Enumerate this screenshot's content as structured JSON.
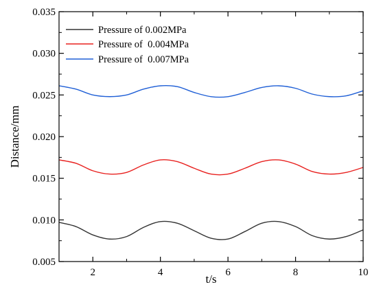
{
  "chart_data": {
    "type": "line",
    "xlabel": "t/s",
    "ylabel": "Distance/mm",
    "xlim": [
      1,
      10
    ],
    "ylim": [
      0.005,
      0.035
    ],
    "xticks": [
      2,
      4,
      6,
      8,
      10
    ],
    "xtick_labels": [
      "2",
      "4",
      "6",
      "8",
      "10"
    ],
    "yticks": [
      0.005,
      0.01,
      0.015,
      0.02,
      0.025,
      0.03,
      0.035
    ],
    "ytick_labels": [
      "0.005",
      "0.010",
      "0.015",
      "0.020",
      "0.025",
      "0.030",
      "0.035"
    ],
    "legend_position": "top-left",
    "grid": false,
    "series": [
      {
        "name": "Pressure of 0.002MPa",
        "color": "#333333",
        "x": [
          1.0,
          1.5,
          2.0,
          2.5,
          3.0,
          3.5,
          4.0,
          4.5,
          5.0,
          5.5,
          6.0,
          6.5,
          7.0,
          7.5,
          8.0,
          8.5,
          9.0,
          9.5,
          10.0
        ],
        "y": [
          0.0097,
          0.0092,
          0.0082,
          0.0077,
          0.008,
          0.0091,
          0.0098,
          0.0096,
          0.0087,
          0.0078,
          0.0077,
          0.0086,
          0.0096,
          0.0098,
          0.0092,
          0.0081,
          0.0077,
          0.008,
          0.0088
        ]
      },
      {
        "name": "Pressure of  0.004MPa",
        "color": "#e8211f",
        "x": [
          1.0,
          1.5,
          2.0,
          2.5,
          3.0,
          3.5,
          4.0,
          4.5,
          5.0,
          5.5,
          6.0,
          6.5,
          7.0,
          7.5,
          8.0,
          8.5,
          9.0,
          9.5,
          10.0
        ],
        "y": [
          0.0172,
          0.0168,
          0.0159,
          0.0155,
          0.0157,
          0.0166,
          0.0172,
          0.017,
          0.0162,
          0.0155,
          0.0155,
          0.0162,
          0.017,
          0.0172,
          0.0167,
          0.0158,
          0.0155,
          0.0157,
          0.0163
        ]
      },
      {
        "name": "Pressure of  0.007MPa",
        "color": "#1f5fd6",
        "x": [
          1.0,
          1.5,
          2.0,
          2.5,
          3.0,
          3.5,
          4.0,
          4.5,
          5.0,
          5.5,
          6.0,
          6.5,
          7.0,
          7.5,
          8.0,
          8.5,
          9.0,
          9.5,
          10.0
        ],
        "y": [
          0.0261,
          0.0257,
          0.025,
          0.0248,
          0.025,
          0.0257,
          0.0261,
          0.026,
          0.0253,
          0.0248,
          0.0248,
          0.0253,
          0.0259,
          0.0261,
          0.0258,
          0.0251,
          0.0248,
          0.0249,
          0.0255
        ]
      }
    ]
  }
}
